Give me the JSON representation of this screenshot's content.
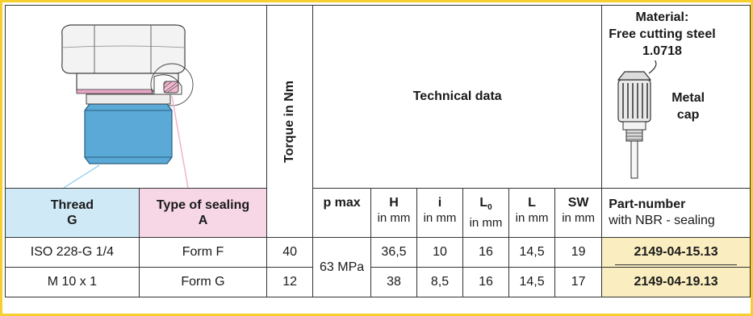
{
  "material": {
    "label": "Material:",
    "line1": "Free cutting steel",
    "line2": "1.0718",
    "cap_line1": "Metal",
    "cap_line2": "cap"
  },
  "headers": {
    "torque": "Torque in Nm",
    "technical_data": "Technical data",
    "thread_line1": "Thread",
    "thread_line2": "G",
    "sealing_line1": "Type of sealing",
    "sealing_line2": "A",
    "p_max": "p max",
    "h": "H",
    "i": "i",
    "l0_main": "L",
    "l0_sub": "0",
    "l": "L",
    "sw": "SW",
    "unit": "in mm",
    "part_number_line1": "Part-number",
    "part_number_line2": "with NBR - sealing"
  },
  "rows": [
    {
      "thread": "ISO 228-G 1/4",
      "sealing": "Form F",
      "torque": "40",
      "h": "36,5",
      "i": "10",
      "l0": "16",
      "l": "14,5",
      "sw": "19",
      "part_number": "2149-04-15.13"
    },
    {
      "thread": "M 10 x 1",
      "sealing": "Form G",
      "torque": "12",
      "h": "38",
      "i": "8,5",
      "l0": "16",
      "l": "14,5",
      "sw": "17",
      "part_number": "2149-04-19.13"
    }
  ],
  "p_max_value": "63 MPa",
  "colors": {
    "border": "#f6cf2e",
    "thread_header": "#cfe9f6",
    "sealing_header": "#f7d6e6",
    "part_number_bg": "#faedc0",
    "fitting_blue": "#5aa9d6"
  }
}
